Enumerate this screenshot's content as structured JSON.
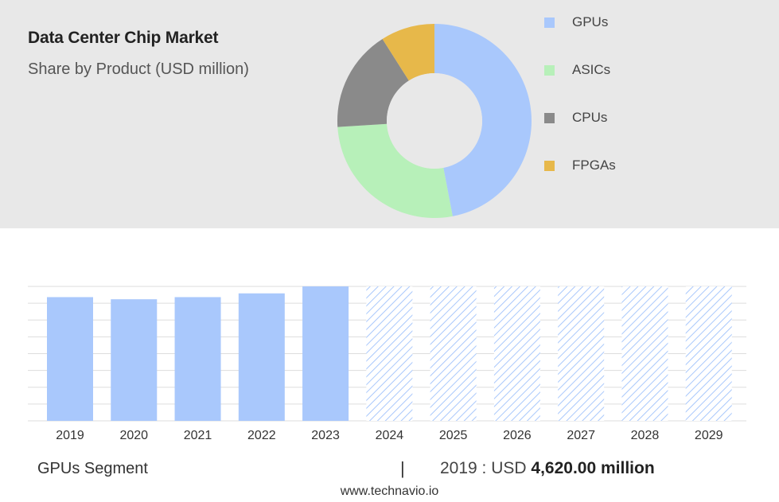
{
  "header": {
    "title": "Data Center Chip Market",
    "subtitle": "Share by Product (USD million)"
  },
  "colors": {
    "GPUs": "#a9c8fc",
    "ASICs": "#b7f0b9",
    "CPUs": "#8a8a8a",
    "FPGAs": "#e7b84a",
    "forecast_hatch": "#a9c8fc",
    "gridline": "#dddddd"
  },
  "chart_data": [
    {
      "type": "pie",
      "subtype": "donut",
      "categories": [
        "GPUs",
        "ASICs",
        "CPUs",
        "FPGAs"
      ],
      "values": [
        47,
        27,
        17,
        9
      ],
      "unit": "approximate share (%)",
      "legend": {
        "position": "right",
        "entries": [
          "GPUs",
          "ASICs",
          "CPUs",
          "FPGAs"
        ]
      }
    },
    {
      "type": "bar",
      "series_name": "GPUs",
      "categories": [
        "2019",
        "2020",
        "2021",
        "2022",
        "2023",
        "2024",
        "2025",
        "2026",
        "2027",
        "2028",
        "2029"
      ],
      "values": [
        4620,
        4540,
        4620,
        4760,
        5020,
        null,
        null,
        null,
        null,
        null,
        null
      ],
      "forecast_categories": [
        "2024",
        "2025",
        "2026",
        "2027",
        "2028",
        "2029"
      ],
      "ylim": [
        0,
        5020
      ],
      "grid": true,
      "y_tick_labels_visible": false
    }
  ],
  "footer": {
    "segment_label": "GPUs Segment",
    "separator": "|",
    "year_prefix": "2019 : USD",
    "value_text": "4,620.00 million",
    "source": "www.technavio.io"
  }
}
